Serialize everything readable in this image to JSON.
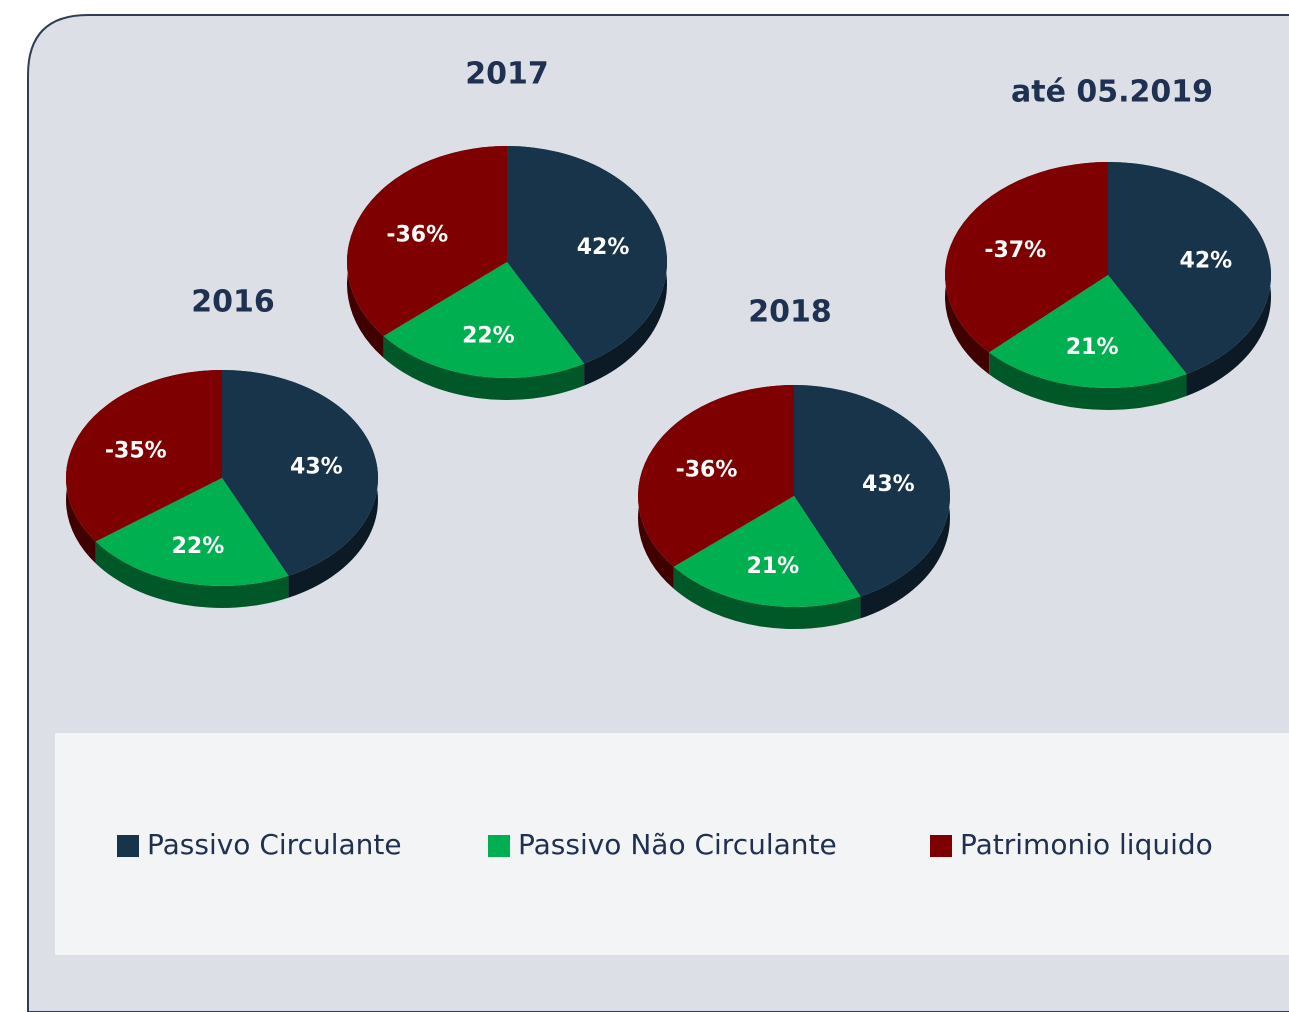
{
  "chart_data": [
    {
      "type": "pie",
      "title": "2016",
      "categories": [
        "Passivo Circulante",
        "Passivo Não Circulante",
        "Patrimonio liquido"
      ],
      "values": [
        43,
        22,
        -35
      ],
      "value_labels": [
        "43%",
        "22%",
        "-35%"
      ],
      "colors": [
        "#17344a",
        "#00b050",
        "#7f0000"
      ]
    },
    {
      "type": "pie",
      "title": "2017",
      "categories": [
        "Passivo Circulante",
        "Passivo Não Circulante",
        "Patrimonio liquido"
      ],
      "values": [
        42,
        22,
        -36
      ],
      "value_labels": [
        "42%",
        "22%",
        "-36%"
      ],
      "colors": [
        "#17344a",
        "#00b050",
        "#7f0000"
      ]
    },
    {
      "type": "pie",
      "title": "2018",
      "categories": [
        "Passivo Circulante",
        "Passivo Não Circulante",
        "Patrimonio liquido"
      ],
      "values": [
        43,
        21,
        -36
      ],
      "value_labels": [
        "43%",
        "21%",
        "-36%"
      ],
      "colors": [
        "#17344a",
        "#00b050",
        "#7f0000"
      ]
    },
    {
      "type": "pie",
      "title": "até 05.2019",
      "categories": [
        "Passivo Circulante",
        "Passivo Não Circulante",
        "Patrimonio liquido"
      ],
      "values": [
        42,
        21,
        -37
      ],
      "value_labels": [
        "42%",
        "21%",
        "-37%"
      ],
      "colors": [
        "#17344a",
        "#00b050",
        "#7f0000"
      ]
    }
  ]
}
